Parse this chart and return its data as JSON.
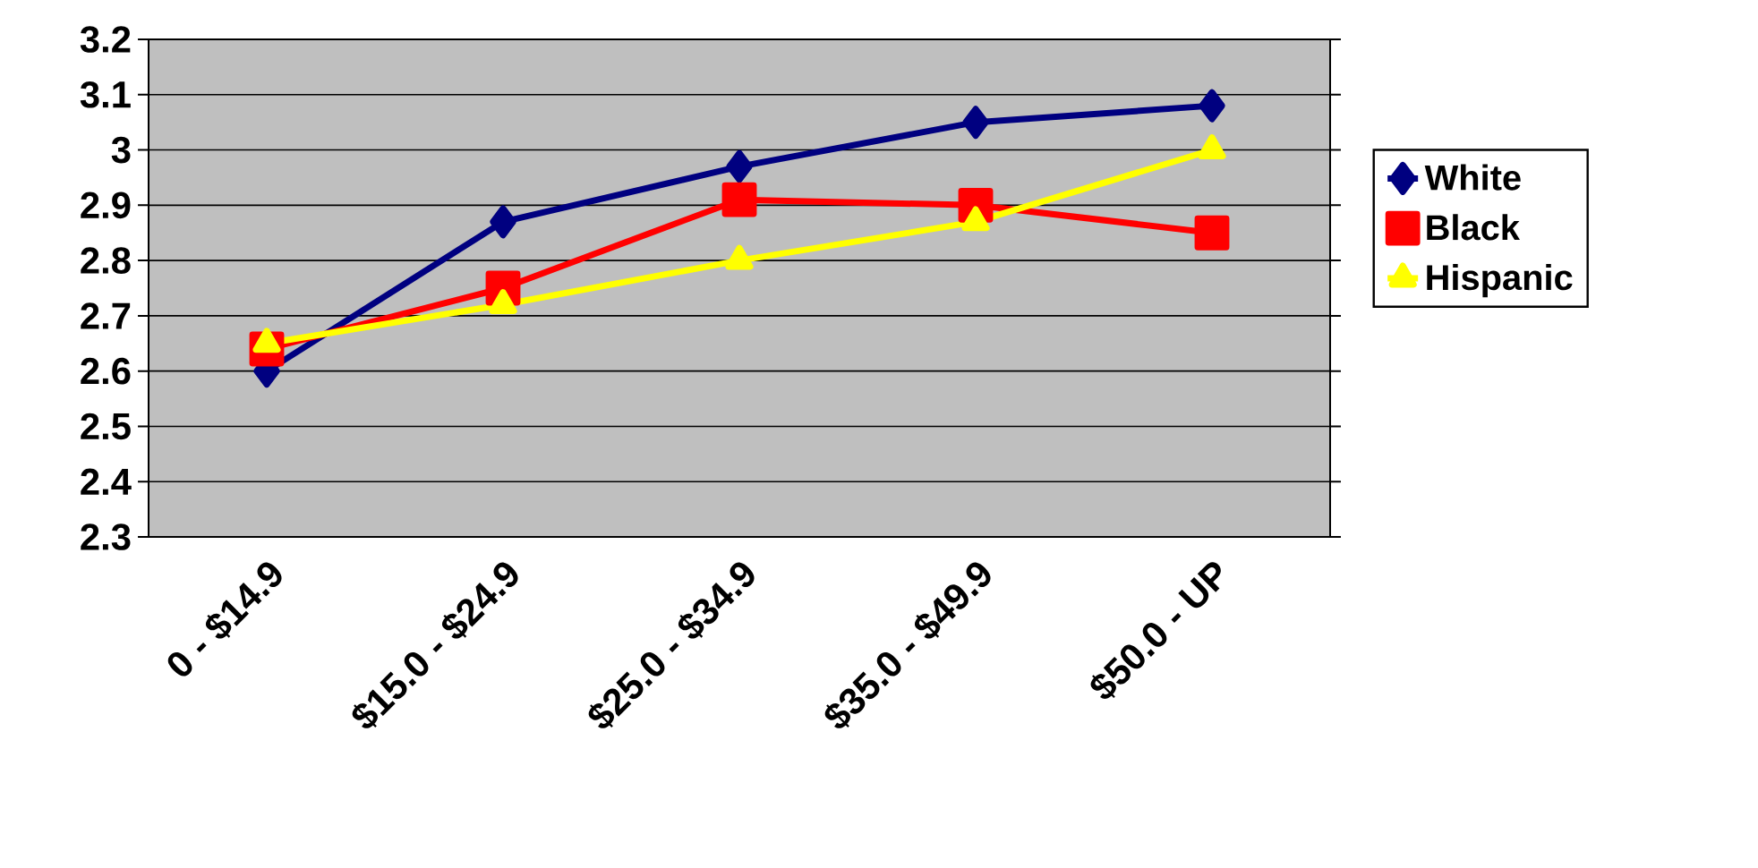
{
  "chart_data": {
    "type": "line",
    "categories": [
      "0 - $14.9",
      "$15.0 - $24.9",
      "$25.0 - $34.9",
      "$35.0 - $49.9",
      "$50.0 - UP"
    ],
    "series": [
      {
        "name": "White",
        "color": "#000080",
        "marker": "diamond",
        "values": [
          2.6,
          2.87,
          2.97,
          3.05,
          3.08
        ]
      },
      {
        "name": "Black",
        "color": "#ff0000",
        "marker": "square",
        "values": [
          2.64,
          2.75,
          2.91,
          2.9,
          2.85
        ]
      },
      {
        "name": "Hispanic",
        "color": "#ffff00",
        "marker": "triangle",
        "values": [
          2.65,
          2.72,
          2.8,
          2.87,
          3.0
        ]
      }
    ],
    "ylim": [
      2.3,
      3.2
    ],
    "yticks": [
      2.3,
      2.4,
      2.5,
      2.6,
      2.7,
      2.8,
      2.9,
      3,
      3.1,
      3.2
    ],
    "grid": "y",
    "legend": "right",
    "line_style": "solid"
  }
}
